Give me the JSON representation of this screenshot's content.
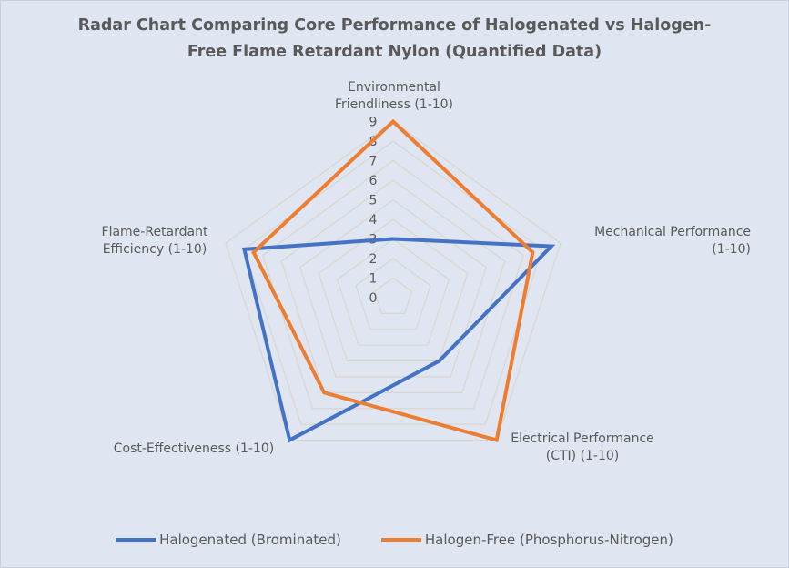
{
  "chart_data": {
    "type": "radar",
    "title": [
      "Radar Chart Comparing Core Performance of Halogenated vs Halogen-",
      "Free Flame Retardant Nylon (Quantified Data)"
    ],
    "axes": [
      [
        "Environmental",
        "Friendliness (1-10)"
      ],
      [
        "Mechanical Performance",
        "(1-10)"
      ],
      [
        "Electrical Performance",
        "(CTI) (1-10)"
      ],
      [
        "Cost-Effectiveness (1-10)"
      ],
      [
        "Flame-Retardant",
        "Efficiency (1-10)"
      ]
    ],
    "ticks": [
      "0",
      "1",
      "2",
      "3",
      "4",
      "5",
      "6",
      "7",
      "8",
      "9"
    ],
    "rlim": [
      0,
      9
    ],
    "grid": true,
    "legend": "bottom",
    "series": [
      {
        "name": "Halogenated (Brominated)",
        "color": "#4472C4",
        "values": [
          3,
          8.5,
          4,
          9,
          8
        ]
      },
      {
        "name": "Halogen-Free (Phosphorus-Nitrogen)",
        "color": "#ED7D31",
        "values": [
          9,
          7.5,
          9,
          6,
          7.5
        ]
      }
    ]
  }
}
